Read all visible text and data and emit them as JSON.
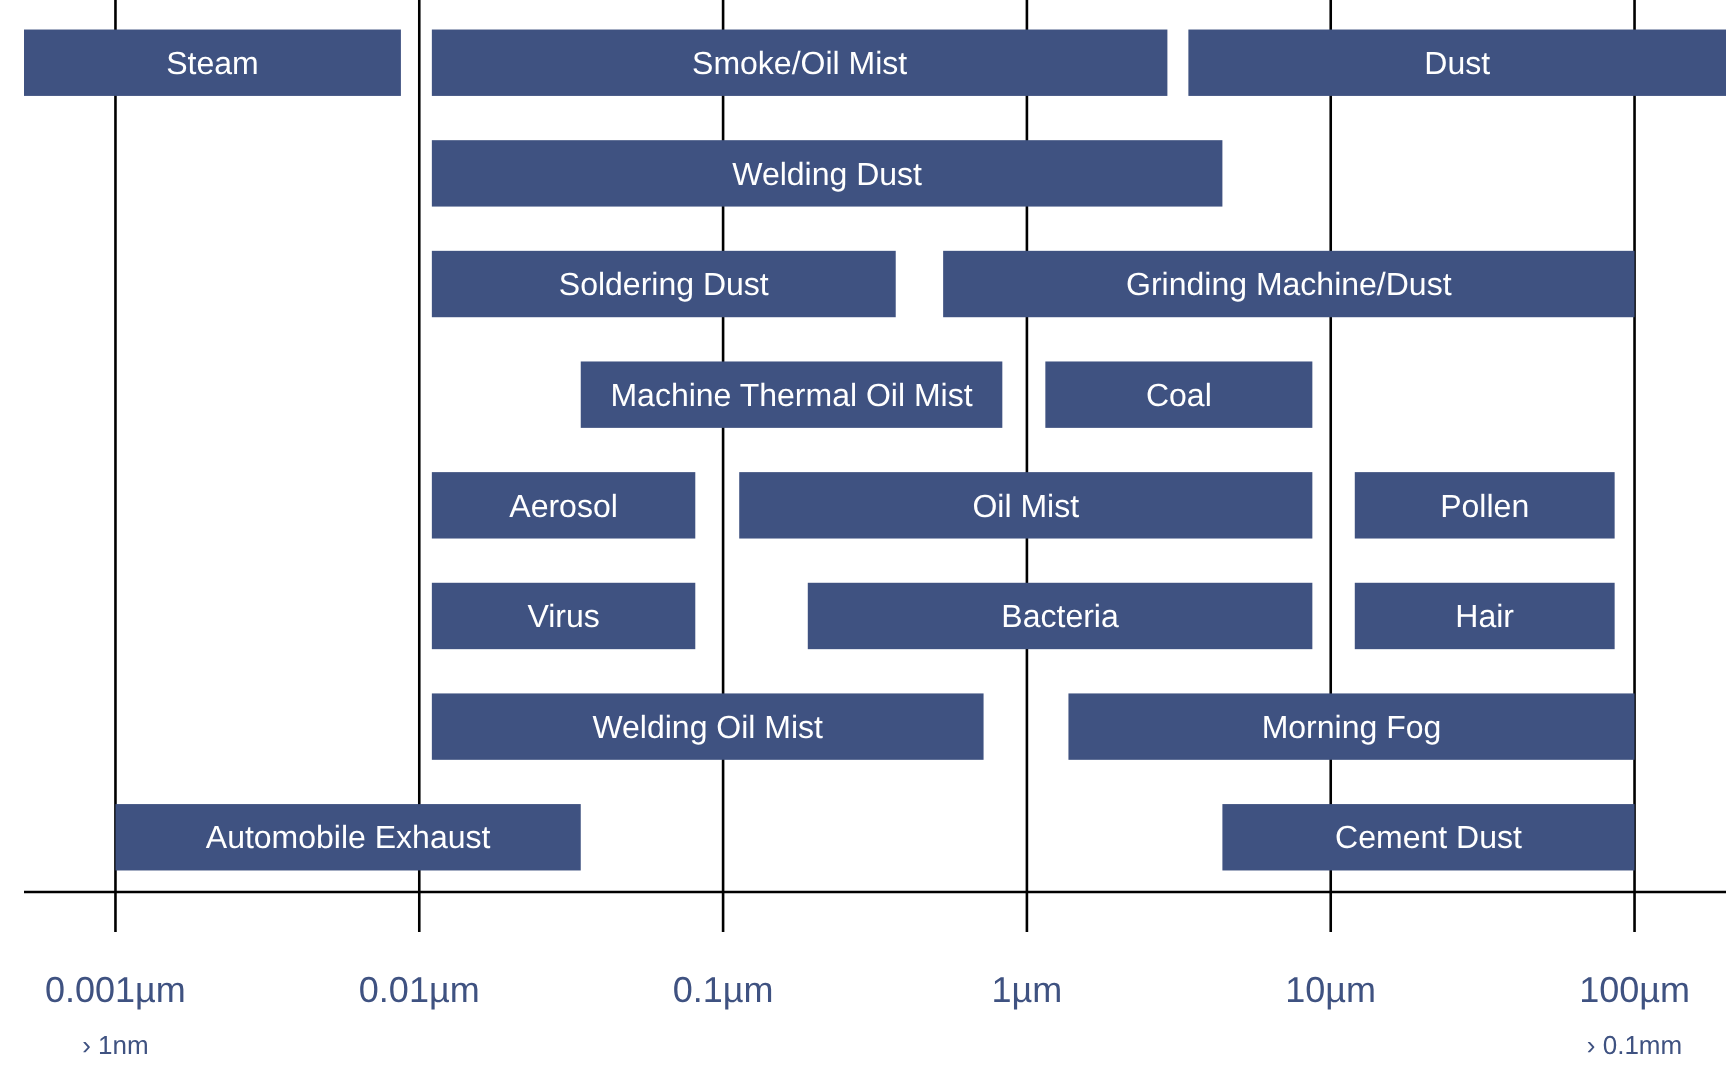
{
  "chart_data": {
    "type": "bar",
    "orientation": "horizontal",
    "log": "x",
    "grid": "x",
    "categories": [
      null,
      null,
      null,
      null,
      null,
      null,
      null,
      null
    ],
    "xlim": [
      0.0005,
      200
    ],
    "xticks": [
      {
        "value": 0.001,
        "label": "0.001µm"
      },
      {
        "value": 0.01,
        "label": "0.01µm"
      },
      {
        "value": 0.1,
        "label": "0.1µm"
      },
      {
        "value": 1,
        "label": "1µm"
      },
      {
        "value": 10,
        "label": "10µm"
      },
      {
        "value": 100,
        "label": "100µm"
      }
    ],
    "annotations": [
      "› 1nm",
      "› 0.1mm"
    ],
    "series": [
      {
        "name": "Steam",
        "color": "#3f5281",
        "base": [
          0.0005,
          null,
          null,
          null,
          null,
          null,
          null,
          null
        ],
        "values": [
          0.0082,
          null,
          null,
          null,
          null,
          null,
          null,
          null
        ]
      },
      {
        "name": "Smoke/Oil Mist",
        "color": "#3f5281",
        "base": [
          0.011,
          null,
          null,
          null,
          null,
          null,
          null,
          null
        ],
        "values": [
          2.889,
          null,
          null,
          null,
          null,
          null,
          null,
          null
        ]
      },
      {
        "name": "Dust",
        "color": "#3f5281",
        "base": [
          3.4,
          null,
          null,
          null,
          null,
          null,
          null,
          null
        ],
        "values": [
          196.6,
          null,
          null,
          null,
          null,
          null,
          null,
          null
        ]
      },
      {
        "name": "Welding Dust",
        "color": "#3f5281",
        "base": [
          null,
          0.011,
          null,
          null,
          null,
          null,
          null,
          null
        ],
        "values": [
          null,
          4.389,
          null,
          null,
          null,
          null,
          null,
          null
        ]
      },
      {
        "name": "Soldering Dust",
        "color": "#3f5281",
        "base": [
          null,
          null,
          0.011,
          null,
          null,
          null,
          null,
          null
        ],
        "values": [
          null,
          null,
          0.359,
          null,
          null,
          null,
          null,
          null
        ]
      },
      {
        "name": "Grinding Machine/Dust",
        "color": "#3f5281",
        "base": [
          null,
          null,
          0.53,
          null,
          null,
          null,
          null,
          null
        ],
        "values": [
          null,
          null,
          99.47,
          null,
          null,
          null,
          null,
          null
        ]
      },
      {
        "name": "Machine Thermal Oil Mist",
        "color": "#3f5281",
        "base": [
          null,
          null,
          null,
          0.034,
          null,
          null,
          null,
          null
        ],
        "values": [
          null,
          null,
          null,
          0.796,
          null,
          null,
          null,
          null
        ]
      },
      {
        "name": "Coal",
        "color": "#3f5281",
        "base": [
          null,
          null,
          null,
          1.15,
          null,
          null,
          null,
          null
        ],
        "values": [
          null,
          null,
          null,
          7.55,
          null,
          null,
          null,
          null
        ]
      },
      {
        "name": "Aerosol",
        "color": "#3f5281",
        "base": [
          null,
          null,
          null,
          null,
          0.011,
          null,
          null,
          null
        ],
        "values": [
          null,
          null,
          null,
          null,
          0.07,
          null,
          null,
          null
        ]
      },
      {
        "name": "Oil Mist",
        "color": "#3f5281",
        "base": [
          null,
          null,
          null,
          null,
          0.113,
          null,
          null,
          null
        ],
        "values": [
          null,
          null,
          null,
          null,
          8.587,
          null,
          null,
          null
        ]
      },
      {
        "name": "Pollen",
        "color": "#3f5281",
        "base": [
          null,
          null,
          null,
          null,
          12,
          null,
          null,
          null
        ],
        "values": [
          null,
          null,
          null,
          null,
          74,
          null,
          null,
          null
        ]
      },
      {
        "name": "Virus",
        "color": "#3f5281",
        "base": [
          null,
          null,
          null,
          null,
          null,
          0.011,
          null,
          null
        ],
        "values": [
          null,
          null,
          null,
          null,
          null,
          0.07,
          null,
          null
        ]
      },
      {
        "name": "Bacteria",
        "color": "#3f5281",
        "base": [
          null,
          null,
          null,
          null,
          null,
          0.19,
          null,
          null
        ],
        "values": [
          null,
          null,
          null,
          null,
          null,
          8.51,
          null,
          null
        ]
      },
      {
        "name": "Hair",
        "color": "#3f5281",
        "base": [
          null,
          null,
          null,
          null,
          null,
          12,
          null,
          null
        ],
        "values": [
          null,
          null,
          null,
          null,
          null,
          74,
          null,
          null
        ]
      },
      {
        "name": "Welding Oil Mist",
        "color": "#3f5281",
        "base": [
          null,
          null,
          null,
          null,
          null,
          null,
          0.011,
          null
        ],
        "values": [
          null,
          null,
          null,
          null,
          null,
          null,
          0.709,
          null
        ]
      },
      {
        "name": "Morning Fog",
        "color": "#3f5281",
        "base": [
          null,
          null,
          null,
          null,
          null,
          null,
          1.37,
          null
        ],
        "values": [
          null,
          null,
          null,
          null,
          null,
          null,
          98.63,
          null
        ]
      },
      {
        "name": "Automobile Exhaust",
        "color": "#3f5281",
        "base": [
          null,
          null,
          null,
          null,
          null,
          null,
          null,
          0.001
        ],
        "values": [
          null,
          null,
          null,
          null,
          null,
          null,
          null,
          0.033
        ]
      },
      {
        "name": "Cement Dust",
        "color": "#3f5281",
        "base": [
          null,
          null,
          null,
          null,
          null,
          null,
          null,
          4.4
        ],
        "values": [
          null,
          null,
          null,
          null,
          null,
          null,
          null,
          95.6
        ]
      }
    ]
  }
}
